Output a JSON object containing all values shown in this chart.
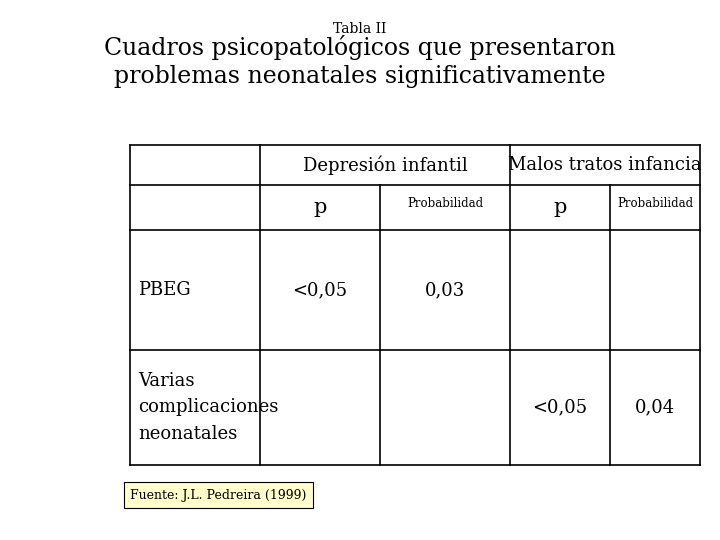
{
  "tabla_label": "Tabla II",
  "title_line1": "Cuadros psicopatológicos que presentaron",
  "title_line2": "problemas neonatales significativamente",
  "col_header1": "Depresión infantil",
  "col_header2": "Malos tratos infancia",
  "sub_col1": "p",
  "sub_col2": "Probabilidad",
  "sub_col3": "p",
  "sub_col4": "Probabilidad",
  "row1_label": "PBEG",
  "row1_col1": "<0,05",
  "row1_col2": "0,03",
  "row2_label": "Varias\ncomplicaciones\nneonatales",
  "row2_col3": "<0,05",
  "row2_col4": "0,04",
  "footnote": "Fuente: J.L. Pedreira (1999)",
  "bg_color": "#ffffff",
  "text_color": "#000000",
  "table_border_color": "#000000",
  "footnote_bg": "#ffffcc"
}
